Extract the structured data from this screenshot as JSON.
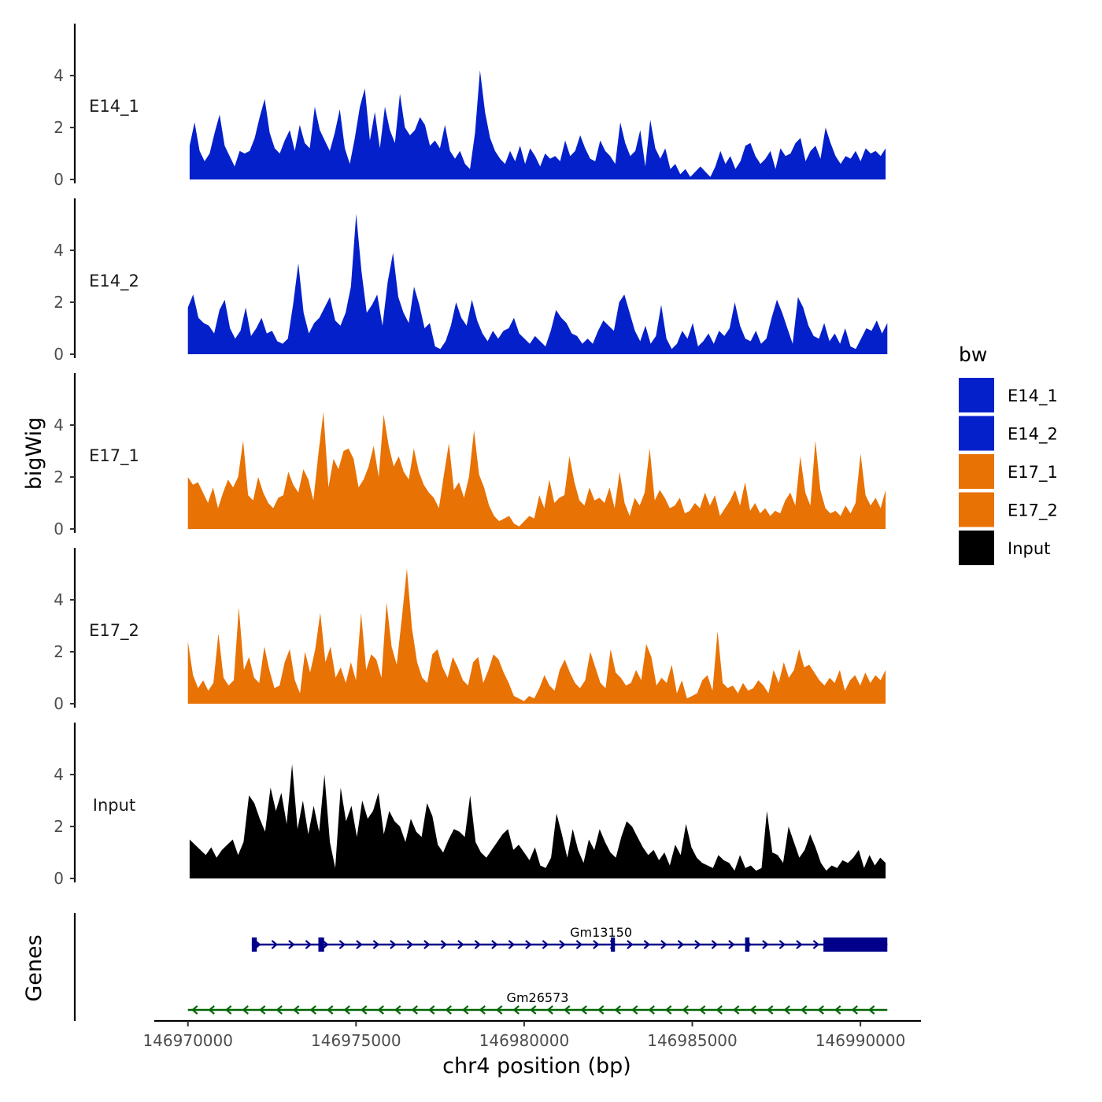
{
  "chart_data": {
    "type": "area",
    "xlabel": "chr4 position (bp)",
    "ylabel": "bigWig",
    "genes_label": "Genes",
    "xlim": [
      146969000,
      146991800
    ],
    "ylim": [
      0,
      6
    ],
    "y_ticks": [
      {
        "value": 0,
        "label": "0"
      },
      {
        "value": 2,
        "label": "2"
      },
      {
        "value": 4,
        "label": "4"
      }
    ],
    "x_ticks": [
      {
        "value": 146970000,
        "label": "146970000"
      },
      {
        "value": 146975000,
        "label": "146975000"
      },
      {
        "value": 146980000,
        "label": "146980000"
      },
      {
        "value": 146985000,
        "label": "146985000"
      },
      {
        "value": 146990000,
        "label": "146990000"
      }
    ],
    "legend": {
      "title": "bw",
      "entries": [
        {
          "label": "E14_1",
          "color": "#0420CB"
        },
        {
          "label": "E14_2",
          "color": "#0420CB"
        },
        {
          "label": "E17_1",
          "color": "#E87204"
        },
        {
          "label": "E17_2",
          "color": "#E87204"
        },
        {
          "label": "Input",
          "color": "#000000"
        }
      ]
    },
    "tracks": [
      {
        "name": "E14_1",
        "color": "#0420CB",
        "x_start": 146970050,
        "x_end": 146990750,
        "values": [
          1.3,
          2.2,
          1.1,
          0.7,
          1.0,
          1.8,
          2.5,
          1.3,
          0.9,
          0.5,
          1.1,
          1.0,
          1.1,
          1.6,
          2.4,
          3.1,
          1.8,
          1.2,
          1.0,
          1.5,
          1.9,
          1.1,
          2.1,
          1.4,
          1.2,
          2.8,
          1.9,
          1.5,
          1.1,
          1.8,
          2.7,
          1.2,
          0.6,
          1.6,
          2.8,
          3.5,
          1.5,
          2.6,
          1.2,
          2.8,
          1.9,
          1.4,
          3.3,
          2.0,
          1.7,
          1.9,
          2.4,
          2.1,
          1.3,
          1.5,
          1.2,
          2.1,
          1.1,
          0.8,
          1.1,
          0.6,
          0.4,
          1.8,
          4.2,
          2.6,
          1.6,
          1.1,
          0.8,
          0.6,
          1.1,
          0.7,
          1.3,
          0.6,
          1.2,
          0.9,
          0.5,
          1.0,
          0.8,
          0.9,
          0.7,
          1.5,
          0.9,
          1.1,
          1.7,
          1.2,
          0.8,
          0.7,
          1.5,
          1.1,
          0.9,
          0.6,
          2.2,
          1.4,
          0.9,
          1.1,
          1.9,
          0.5,
          2.3,
          1.2,
          0.8,
          1.2,
          0.4,
          0.6,
          0.2,
          0.4,
          0.1,
          0.3,
          0.5,
          0.3,
          0.1,
          0.5,
          1.1,
          0.6,
          0.9,
          0.4,
          0.7,
          1.3,
          1.4,
          0.9,
          0.6,
          0.8,
          1.1,
          0.4,
          1.2,
          0.9,
          1.0,
          1.4,
          1.6,
          0.7,
          1.1,
          1.3,
          0.8,
          2.0,
          1.4,
          0.9,
          0.6,
          0.9,
          0.8,
          1.1,
          0.7,
          1.2,
          1.0,
          1.1,
          0.9,
          1.2
        ]
      },
      {
        "name": "E14_2",
        "color": "#0420CB",
        "x_start": 146970000,
        "x_end": 146990800,
        "values": [
          1.8,
          2.3,
          1.4,
          1.2,
          1.1,
          0.8,
          1.7,
          2.1,
          1.0,
          0.6,
          0.9,
          1.8,
          0.7,
          1.0,
          1.4,
          0.8,
          0.9,
          0.5,
          0.4,
          0.6,
          1.9,
          3.5,
          1.6,
          0.8,
          1.2,
          1.4,
          1.8,
          2.2,
          1.3,
          1.1,
          1.6,
          2.6,
          5.4,
          3.2,
          1.6,
          1.9,
          2.3,
          1.1,
          2.8,
          3.9,
          2.2,
          1.6,
          1.2,
          2.6,
          1.9,
          1.0,
          1.2,
          0.3,
          0.2,
          0.5,
          1.1,
          2.0,
          1.4,
          1.1,
          2.1,
          1.3,
          0.8,
          0.5,
          0.9,
          0.6,
          0.9,
          1.0,
          1.4,
          0.8,
          0.6,
          0.4,
          0.7,
          0.5,
          0.3,
          0.9,
          1.7,
          1.4,
          1.2,
          0.8,
          0.7,
          0.4,
          0.6,
          0.4,
          0.9,
          1.3,
          1.1,
          0.9,
          2.0,
          2.3,
          1.6,
          0.9,
          0.5,
          1.1,
          0.4,
          0.7,
          1.9,
          0.6,
          0.2,
          0.4,
          0.9,
          0.6,
          1.2,
          0.3,
          0.5,
          0.8,
          0.4,
          0.9,
          0.7,
          1.0,
          2.0,
          1.1,
          0.6,
          0.5,
          0.9,
          0.4,
          0.6,
          1.4,
          2.1,
          1.6,
          1.0,
          0.4,
          2.2,
          1.8,
          1.1,
          0.7,
          0.6,
          1.2,
          0.5,
          0.8,
          0.4,
          1.0,
          0.3,
          0.2,
          0.6,
          1.0,
          0.9,
          1.3,
          0.8,
          1.2
        ]
      },
      {
        "name": "E17_1",
        "color": "#E87204",
        "x_start": 146970000,
        "x_end": 146990750,
        "values": [
          2.0,
          1.7,
          1.8,
          1.4,
          1.0,
          1.6,
          0.8,
          1.4,
          1.9,
          1.6,
          2.0,
          3.4,
          1.3,
          1.1,
          2.0,
          1.4,
          1.0,
          0.8,
          1.2,
          1.3,
          2.2,
          1.7,
          1.4,
          2.3,
          1.9,
          1.1,
          2.9,
          4.5,
          1.6,
          2.7,
          2.3,
          3.0,
          3.1,
          2.7,
          1.6,
          1.9,
          2.4,
          3.2,
          2.0,
          4.4,
          3.2,
          2.4,
          2.8,
          2.2,
          1.9,
          3.1,
          2.2,
          1.7,
          1.4,
          1.2,
          0.8,
          2.1,
          3.3,
          1.5,
          1.8,
          1.2,
          2.0,
          3.8,
          2.1,
          1.6,
          0.9,
          0.5,
          0.3,
          0.4,
          0.5,
          0.2,
          0.1,
          0.3,
          0.5,
          0.4,
          1.3,
          0.8,
          1.9,
          1.0,
          1.2,
          1.3,
          2.8,
          1.8,
          1.1,
          0.9,
          1.6,
          1.1,
          1.2,
          1.0,
          1.6,
          0.8,
          2.2,
          1.0,
          0.5,
          1.2,
          0.9,
          1.4,
          3.1,
          1.1,
          1.5,
          1.2,
          0.8,
          0.9,
          1.2,
          0.6,
          0.7,
          1.0,
          0.8,
          1.4,
          0.9,
          1.3,
          0.5,
          0.8,
          1.1,
          1.5,
          0.9,
          1.8,
          0.7,
          1.0,
          0.6,
          0.8,
          0.5,
          0.7,
          0.6,
          1.1,
          1.4,
          0.9,
          2.8,
          1.4,
          0.9,
          3.4,
          1.5,
          0.8,
          0.6,
          0.7,
          0.5,
          0.9,
          0.6,
          1.0,
          2.9,
          1.3,
          0.9,
          1.2,
          0.8,
          1.5
        ]
      },
      {
        "name": "E17_2",
        "color": "#E87204",
        "x_start": 146970000,
        "x_end": 146990750,
        "values": [
          2.4,
          1.1,
          0.6,
          0.9,
          0.5,
          0.8,
          2.7,
          1.0,
          0.7,
          0.9,
          3.7,
          1.3,
          1.8,
          1.0,
          0.8,
          2.2,
          1.3,
          0.6,
          0.7,
          1.6,
          2.1,
          0.9,
          0.4,
          2.0,
          1.2,
          2.1,
          3.5,
          1.6,
          2.2,
          1.0,
          1.4,
          0.8,
          1.6,
          0.9,
          3.5,
          1.3,
          1.9,
          1.7,
          1.0,
          3.9,
          2.2,
          1.5,
          3.3,
          5.2,
          2.9,
          1.6,
          1.0,
          0.8,
          1.9,
          2.1,
          1.4,
          1.0,
          1.8,
          1.4,
          0.9,
          0.7,
          1.6,
          1.8,
          0.8,
          1.3,
          1.9,
          1.7,
          1.2,
          0.8,
          0.3,
          0.2,
          0.1,
          0.3,
          0.2,
          0.6,
          1.1,
          0.7,
          0.5,
          1.3,
          1.7,
          1.2,
          0.8,
          0.6,
          0.9,
          2.0,
          1.4,
          0.8,
          0.6,
          2.1,
          1.2,
          1.0,
          0.7,
          0.8,
          1.3,
          0.9,
          2.3,
          1.8,
          0.7,
          1.0,
          0.8,
          1.5,
          0.4,
          0.9,
          0.2,
          0.3,
          0.4,
          0.9,
          1.1,
          0.5,
          2.8,
          0.8,
          0.6,
          0.7,
          0.4,
          0.8,
          0.5,
          0.6,
          0.9,
          0.7,
          0.4,
          1.3,
          0.8,
          1.6,
          1.0,
          1.3,
          2.1,
          1.4,
          1.5,
          1.2,
          0.9,
          0.7,
          1.0,
          0.8,
          1.3,
          0.5,
          0.9,
          1.1,
          0.7,
          1.2,
          0.8,
          1.1,
          0.9,
          1.3
        ]
      },
      {
        "name": "Input",
        "color": "#000000",
        "x_start": 146970050,
        "x_end": 146990750,
        "values": [
          1.5,
          1.3,
          1.1,
          0.9,
          1.2,
          0.8,
          1.1,
          1.3,
          1.5,
          0.9,
          1.4,
          3.2,
          2.9,
          2.3,
          1.8,
          3.5,
          2.6,
          3.3,
          2.1,
          4.4,
          1.9,
          3.0,
          1.7,
          2.8,
          1.8,
          4.0,
          1.4,
          0.4,
          3.5,
          2.2,
          2.8,
          1.6,
          3.0,
          2.3,
          2.6,
          3.3,
          1.7,
          2.6,
          2.2,
          2.0,
          1.4,
          2.3,
          1.8,
          1.6,
          2.9,
          2.4,
          1.3,
          1.0,
          1.5,
          1.9,
          1.8,
          1.6,
          3.2,
          1.4,
          1.0,
          0.8,
          1.1,
          1.4,
          1.7,
          1.9,
          1.1,
          1.3,
          1.0,
          0.7,
          1.2,
          0.5,
          0.4,
          0.8,
          2.5,
          1.7,
          0.8,
          1.9,
          1.1,
          0.6,
          1.5,
          1.1,
          1.9,
          1.4,
          1.0,
          0.8,
          1.6,
          2.2,
          2.0,
          1.6,
          1.2,
          0.9,
          1.1,
          0.7,
          1.0,
          0.5,
          1.3,
          0.9,
          2.1,
          1.2,
          0.8,
          0.6,
          0.5,
          0.4,
          0.9,
          0.7,
          0.6,
          0.3,
          0.9,
          0.4,
          0.5,
          0.3,
          0.4,
          2.6,
          1.0,
          0.9,
          0.6,
          2.0,
          1.4,
          0.8,
          1.1,
          1.7,
          1.2,
          0.6,
          0.3,
          0.5,
          0.4,
          0.7,
          0.6,
          0.8,
          1.1,
          0.4,
          0.9,
          0.5,
          0.8,
          0.6
        ]
      }
    ],
    "genes": [
      {
        "name": "Gm13150",
        "strand": "+",
        "color": "#00008B",
        "start": 146971900,
        "end": 146990800,
        "exons": [
          [
            146971900,
            146972050
          ],
          [
            146973880,
            146974050
          ],
          [
            146982580,
            146982700
          ],
          [
            146986570,
            146986700
          ],
          [
            146988900,
            146990800
          ]
        ]
      },
      {
        "name": "Gm26573",
        "strand": "-",
        "color": "#006400",
        "start": 146970000,
        "end": 146990800,
        "exons": []
      }
    ]
  }
}
